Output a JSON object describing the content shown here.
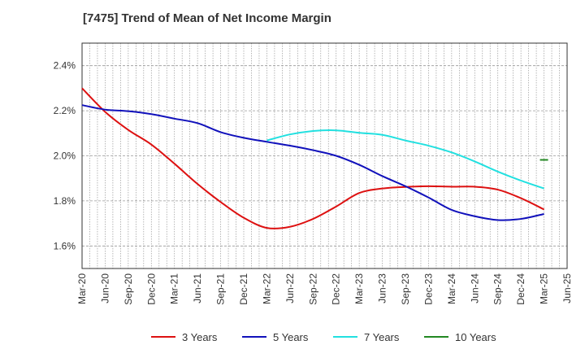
{
  "title": "[7475]  Trend of Mean of Net Income Margin",
  "chart_data": {
    "type": "line",
    "title": "[7475]  Trend of Mean of Net Income Margin",
    "xlabel": "",
    "ylabel": "",
    "x_ticks": [
      "Mar-20",
      "Jun-20",
      "Sep-20",
      "Dec-20",
      "Mar-21",
      "Jun-21",
      "Sep-21",
      "Dec-21",
      "Mar-22",
      "Jun-22",
      "Sep-22",
      "Dec-22",
      "Mar-23",
      "Jun-23",
      "Sep-23",
      "Dec-23",
      "Mar-24",
      "Jun-24",
      "Sep-24",
      "Dec-24",
      "Mar-25",
      "Jun-25"
    ],
    "y_ticks": [
      "1.6%",
      "1.8%",
      "2.0%",
      "2.2%",
      "2.4%"
    ],
    "y_tick_values": [
      1.6,
      1.8,
      2.0,
      2.2,
      2.4
    ],
    "ylim": [
      1.5,
      2.5
    ],
    "grid": true,
    "legend_position": "bottom",
    "series": [
      {
        "name": "3 Years",
        "color": "#dd1111",
        "x": [
          "Mar-20",
          "Jun-20",
          "Sep-20",
          "Dec-20",
          "Mar-21",
          "Jun-21",
          "Sep-21",
          "Dec-21",
          "Mar-22",
          "Jun-22",
          "Sep-22",
          "Dec-22",
          "Mar-23",
          "Jun-23",
          "Sep-23",
          "Dec-23",
          "Mar-24",
          "Jun-24",
          "Sep-24",
          "Dec-24",
          "Mar-25"
        ],
        "values": [
          2.3,
          2.195,
          2.115,
          2.05,
          1.965,
          1.875,
          1.795,
          1.725,
          1.68,
          1.685,
          1.72,
          1.775,
          1.835,
          1.855,
          1.862,
          1.865,
          1.863,
          1.863,
          1.85,
          1.812,
          1.762
        ]
      },
      {
        "name": "5 Years",
        "color": "#1111bb",
        "x": [
          "Mar-20",
          "Jun-20",
          "Sep-20",
          "Dec-20",
          "Mar-21",
          "Jun-21",
          "Sep-21",
          "Dec-21",
          "Mar-22",
          "Jun-22",
          "Sep-22",
          "Dec-22",
          "Mar-23",
          "Jun-23",
          "Sep-23",
          "Dec-23",
          "Mar-24",
          "Jun-24",
          "Sep-24",
          "Dec-24",
          "Mar-25"
        ],
        "values": [
          2.225,
          2.205,
          2.198,
          2.185,
          2.165,
          2.145,
          2.105,
          2.08,
          2.062,
          2.045,
          2.025,
          2.0,
          1.96,
          1.91,
          1.865,
          1.815,
          1.76,
          1.732,
          1.715,
          1.72,
          1.742
        ]
      },
      {
        "name": "7 Years",
        "color": "#22e0e0",
        "x": [
          "Mar-22",
          "Jun-22",
          "Sep-22",
          "Dec-22",
          "Mar-23",
          "Jun-23",
          "Sep-23",
          "Dec-23",
          "Mar-24",
          "Jun-24",
          "Sep-24",
          "Dec-24",
          "Mar-25"
        ],
        "values": [
          2.068,
          2.095,
          2.11,
          2.113,
          2.102,
          2.093,
          2.068,
          2.045,
          2.015,
          1.975,
          1.93,
          1.89,
          1.855
        ]
      },
      {
        "name": "10 Years",
        "color": "#228822",
        "x": [
          "Mar-25"
        ],
        "values": [
          1.982
        ]
      }
    ]
  }
}
